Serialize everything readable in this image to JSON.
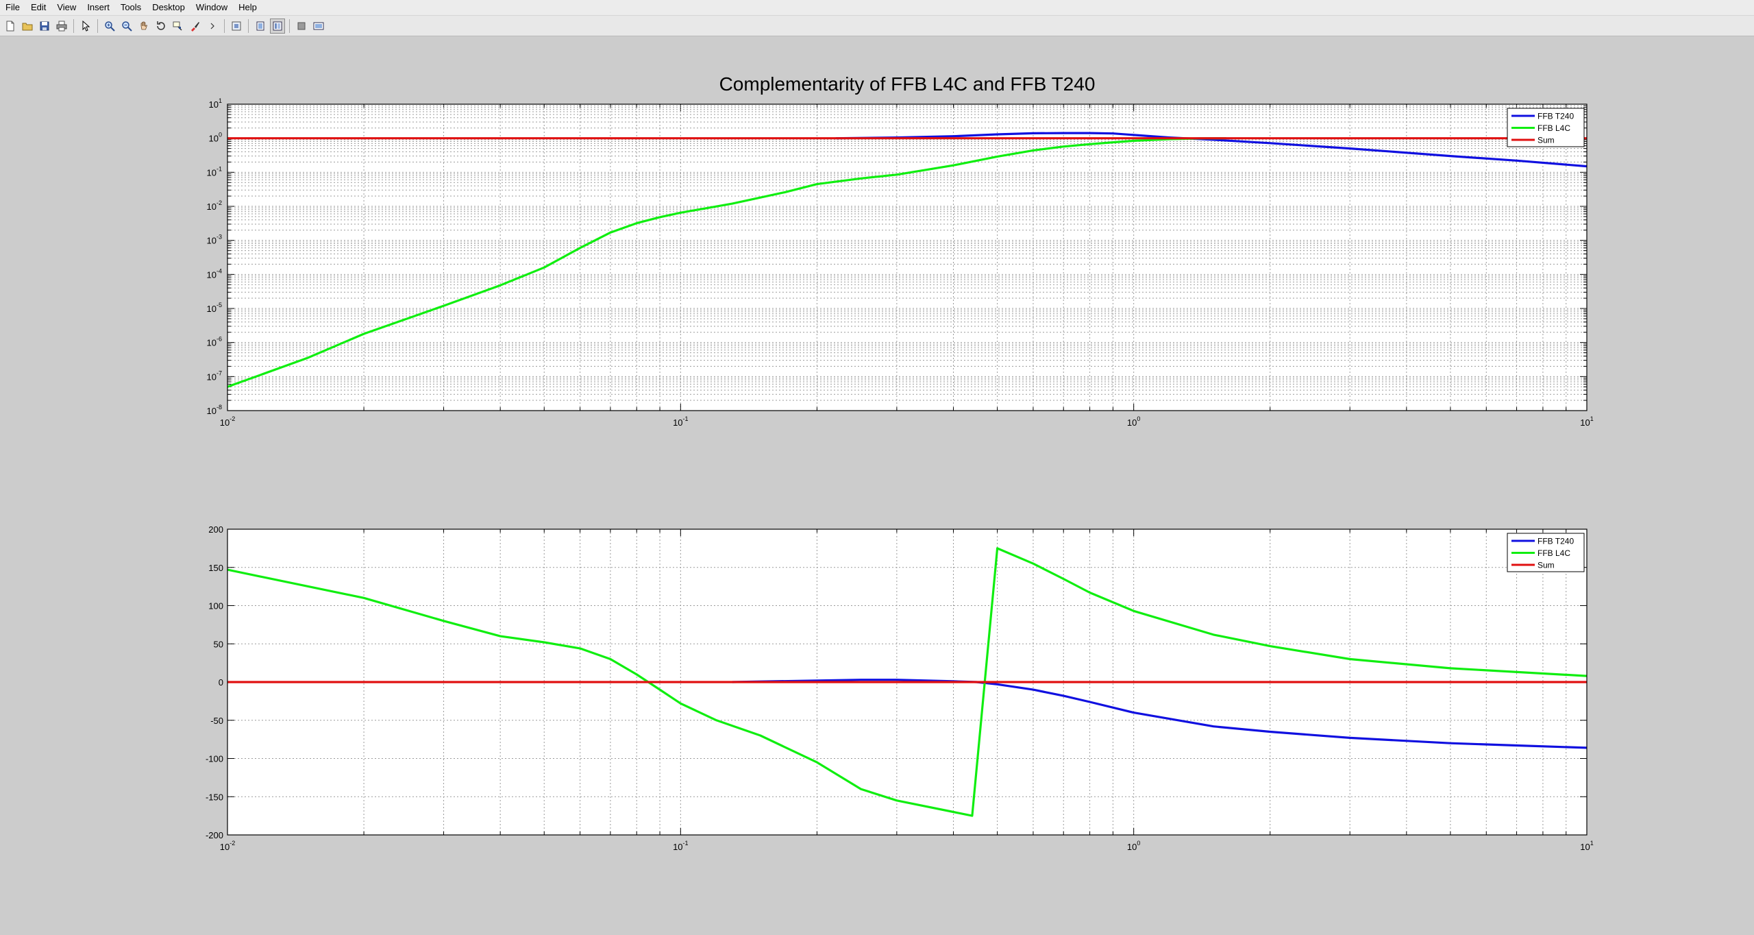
{
  "menubar": {
    "items": [
      "File",
      "Edit",
      "View",
      "Insert",
      "Tools",
      "Desktop",
      "Window",
      "Help"
    ]
  },
  "toolbar": {
    "buttons": [
      {
        "icon": "new-figure-icon"
      },
      {
        "icon": "open-file-icon"
      },
      {
        "icon": "save-icon"
      },
      {
        "icon": "print-icon"
      },
      {
        "icon": "edit-plot-arrow-icon"
      },
      {
        "icon": "zoom-in-icon"
      },
      {
        "icon": "zoom-out-icon"
      },
      {
        "icon": "pan-hand-icon"
      },
      {
        "icon": "rotate-3d-icon"
      },
      {
        "icon": "data-cursor-icon"
      },
      {
        "icon": "brush-icon"
      },
      {
        "icon": "link-plot-icon"
      },
      {
        "icon": "colorbar-icon"
      },
      {
        "icon": "legend-icon"
      },
      {
        "icon": "hide-plot-tools-icon"
      },
      {
        "icon": "show-plot-tools-icon"
      }
    ]
  },
  "colors": {
    "figure_background": "#cccccc",
    "axes_background": "#ffffff",
    "series_ffb_t240": "#1010e0",
    "series_ffb_l4c": "#10ee10",
    "series_sum": "#e01010"
  },
  "chart_data": [
    {
      "type": "line",
      "title": "Complementarity of FFB L4C and FFB T240",
      "xscale": "log",
      "yscale": "log",
      "xlim": [
        0.01,
        10
      ],
      "ylim": [
        1e-08,
        10
      ],
      "x_ticks": [
        {
          "value": 0.01,
          "base": "10",
          "exp": "-2"
        },
        {
          "value": 0.1,
          "base": "10",
          "exp": "-1"
        },
        {
          "value": 1,
          "base": "10",
          "exp": "0"
        },
        {
          "value": 10,
          "base": "10",
          "exp": "1"
        }
      ],
      "y_ticks": [
        {
          "value": 1e-08,
          "base": "10",
          "exp": "-8"
        },
        {
          "value": 1e-07,
          "base": "10",
          "exp": "-7"
        },
        {
          "value": 1e-06,
          "base": "10",
          "exp": "-6"
        },
        {
          "value": 1e-05,
          "base": "10",
          "exp": "-5"
        },
        {
          "value": 0.0001,
          "base": "10",
          "exp": "-4"
        },
        {
          "value": 0.001,
          "base": "10",
          "exp": "-3"
        },
        {
          "value": 0.01,
          "base": "10",
          "exp": "-2"
        },
        {
          "value": 0.1,
          "base": "10",
          "exp": "-1"
        },
        {
          "value": 1,
          "base": "10",
          "exp": "0"
        },
        {
          "value": 10,
          "base": "10",
          "exp": "1"
        }
      ],
      "grid": true,
      "legend": "top-right",
      "series": [
        {
          "name": "FFB T240",
          "color": "#1010e0",
          "x": [
            0.22,
            0.3,
            0.4,
            0.5,
            0.6,
            0.7,
            0.8,
            0.9,
            1.0,
            1.2,
            1.5,
            2,
            3,
            5,
            7,
            10
          ],
          "y": [
            1.0,
            1.05,
            1.15,
            1.3,
            1.4,
            1.42,
            1.42,
            1.38,
            1.25,
            1.05,
            0.9,
            0.72,
            0.5,
            0.3,
            0.22,
            0.15
          ]
        },
        {
          "name": "FFB L4C",
          "color": "#10ee10",
          "x": [
            0.01,
            0.015,
            0.02,
            0.03,
            0.04,
            0.05,
            0.06,
            0.07,
            0.08,
            0.09,
            0.1,
            0.13,
            0.17,
            0.2,
            0.25,
            0.3,
            0.4,
            0.5,
            0.6,
            0.7,
            0.8,
            0.9,
            1.0,
            1.2,
            1.4,
            1.6
          ],
          "y": [
            5e-08,
            3.5e-07,
            1.8e-06,
            1.2e-05,
            4.8e-05,
            0.00016,
            0.0006,
            0.0017,
            0.0032,
            0.0048,
            0.0065,
            0.012,
            0.026,
            0.045,
            0.066,
            0.085,
            0.16,
            0.29,
            0.44,
            0.57,
            0.67,
            0.76,
            0.84,
            0.94,
            0.99,
            1.0
          ]
        },
        {
          "name": "Sum",
          "color": "#e01010",
          "x": [
            0.01,
            10
          ],
          "y": [
            1,
            1
          ]
        }
      ]
    },
    {
      "type": "line",
      "xscale": "log",
      "xlim": [
        0.01,
        10
      ],
      "ylim": [
        -200,
        200
      ],
      "x_ticks": [
        {
          "value": 0.01,
          "base": "10",
          "exp": "-2"
        },
        {
          "value": 0.1,
          "base": "10",
          "exp": "-1"
        },
        {
          "value": 1,
          "base": "10",
          "exp": "0"
        },
        {
          "value": 10,
          "base": "10",
          "exp": "1"
        }
      ],
      "y_ticks": [
        {
          "value": -200,
          "label": "-200"
        },
        {
          "value": -150,
          "label": "-150"
        },
        {
          "value": -100,
          "label": "-100"
        },
        {
          "value": -50,
          "label": "-50"
        },
        {
          "value": 0,
          "label": "0"
        },
        {
          "value": 50,
          "label": "50"
        },
        {
          "value": 100,
          "label": "100"
        },
        {
          "value": 150,
          "label": "150"
        },
        {
          "value": 200,
          "label": "200"
        }
      ],
      "grid": true,
      "legend": "top-right",
      "series": [
        {
          "name": "FFB T240",
          "color": "#1010e0",
          "x": [
            0.13,
            0.2,
            0.25,
            0.3,
            0.35,
            0.4,
            0.45,
            0.5,
            0.6,
            0.7,
            0.8,
            1.0,
            1.5,
            2,
            3,
            5,
            7,
            10
          ],
          "y": [
            0,
            2,
            3,
            3,
            2,
            1,
            0,
            -3,
            -10,
            -18,
            -26,
            -40,
            -58,
            -65,
            -73,
            -80,
            -83,
            -86
          ]
        },
        {
          "name": "FFB L4C",
          "color": "#10ee10",
          "x": [
            0.01,
            0.02,
            0.03,
            0.04,
            0.05,
            0.06,
            0.07,
            0.08,
            0.09,
            0.1,
            0.12,
            0.15,
            0.2,
            0.25,
            0.3,
            0.4,
            0.44,
            0.5,
            0.6,
            0.7,
            0.8,
            1.0,
            1.5,
            2,
            3,
            5,
            10
          ],
          "y": [
            147,
            110,
            80,
            60,
            52,
            44,
            30,
            10,
            -10,
            -28,
            -50,
            -70,
            -105,
            -140,
            -155,
            -170,
            -175,
            175,
            155,
            135,
            117,
            93,
            62,
            47,
            30,
            18,
            8
          ]
        },
        {
          "name": "Sum",
          "color": "#e01010",
          "x": [
            0.01,
            10
          ],
          "y": [
            0,
            0
          ]
        }
      ]
    }
  ]
}
